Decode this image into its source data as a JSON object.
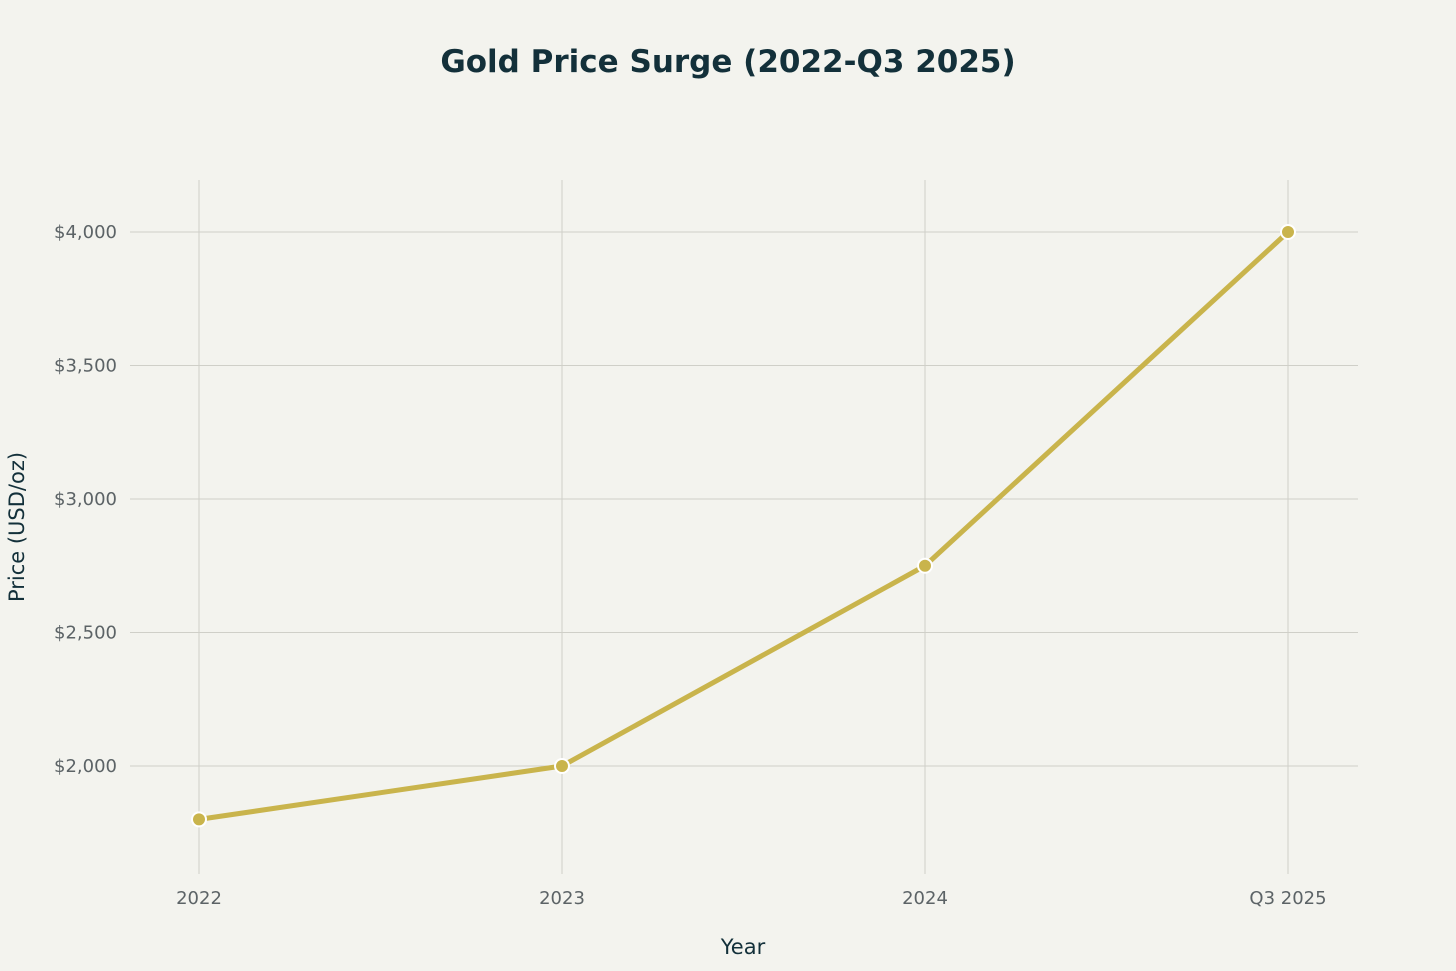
{
  "chart_data": {
    "type": "line",
    "title": "Gold Price Surge (2022-Q3 2025)",
    "xlabel": "Year",
    "ylabel": "Price (USD/oz)",
    "categories": [
      "2022",
      "2023",
      "2024",
      "Q3 2025"
    ],
    "series": [
      {
        "values": [
          1800,
          2000,
          2750,
          4000
        ]
      }
    ],
    "y_ticks": [
      2000,
      2500,
      3000,
      3500,
      4000
    ],
    "y_tick_labels": [
      "$2,000",
      "$2,500",
      "$3,000",
      "$3,500",
      "$4,000"
    ],
    "ylim": [
      1600,
      4200
    ],
    "grid": true,
    "legend": "none"
  },
  "colors": {
    "background": "#f3f3ee",
    "line": "#c9b44c",
    "marker_edge": "#ffffff",
    "grid": "#cfcfc8",
    "title": "#13303a",
    "tick_text": "#5c6366"
  }
}
